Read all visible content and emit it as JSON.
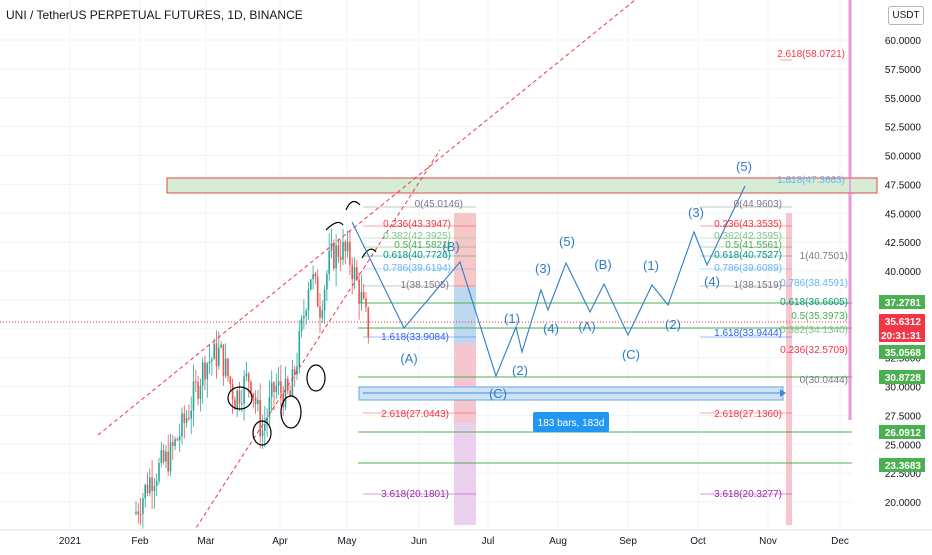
{
  "title": "UNI / TetherUS PERPETUAL FUTURES, 1D, BINANCE",
  "currency_button": "USDT",
  "price_axis": {
    "ticks": [
      "60.0000",
      "57.5000",
      "55.0000",
      "52.5000",
      "50.0000",
      "47.5000",
      "45.0000",
      "42.5000",
      "40.0000",
      "37.5000",
      "35.0000",
      "32.5000",
      "30.0000",
      "27.5000",
      "25.0000",
      "22.5000",
      "20.0000"
    ],
    "top_partial": "6",
    "badges": [
      {
        "text": "37.2781",
        "color": "#4caf50"
      },
      {
        "text": "35.6312",
        "color": "#f23645"
      },
      {
        "text": "20:31:31",
        "color": "#f23645"
      },
      {
        "text": "35.0568",
        "color": "#4caf50"
      },
      {
        "text": "30.8728",
        "color": "#4caf50"
      },
      {
        "text": "26.0912",
        "color": "#4caf50"
      },
      {
        "text": "23.3683",
        "color": "#4caf50"
      }
    ]
  },
  "time_axis": {
    "labels": [
      "2021",
      "Feb",
      "Mar",
      "Apr",
      "May",
      "Jun",
      "Jul",
      "Aug",
      "Sep",
      "Oct",
      "Nov",
      "Dec"
    ]
  },
  "fib_left": [
    {
      "text": "0(45.0146)",
      "color": "#787b86"
    },
    {
      "text": "0.236(43.3947)",
      "color": "#f23645"
    },
    {
      "text": "0.382(42.3925)",
      "color": "#81c784"
    },
    {
      "text": "0.5(41.5821)",
      "color": "#4caf50"
    },
    {
      "text": "0.618(40.7726)",
      "color": "#089981"
    },
    {
      "text": "0.786(39.6194)",
      "color": "#64b5f6"
    },
    {
      "text": "1(38.1505)",
      "color": "#787b86"
    },
    {
      "text": "1.618(33.9084)",
      "color": "#2962ff"
    },
    {
      "text": "2.618(27.0443)",
      "color": "#f23645"
    },
    {
      "text": "3.618(20.1801)",
      "color": "#9c27b0"
    }
  ],
  "fib_right": [
    {
      "text": "2.618(58.0721)",
      "color": "#f23645"
    },
    {
      "text": "1.618(47.3663)",
      "color": "#64b5f6"
    },
    {
      "text": "0(44.9603)",
      "color": "#787b86"
    },
    {
      "text": "0.236(43.3535)",
      "color": "#f23645"
    },
    {
      "text": "0.382(42.3595)",
      "color": "#81c784"
    },
    {
      "text": "0.5(41.5561)",
      "color": "#4caf50"
    },
    {
      "text": "0.618(40.7527)",
      "color": "#089981"
    },
    {
      "text": "0.786(39.6089)",
      "color": "#64b5f6"
    },
    {
      "text": "1(38.1519)",
      "color": "#787b86"
    },
    {
      "text": "1.618(33.9444)",
      "color": "#2962ff"
    },
    {
      "text": "2.618(27.1360)",
      "color": "#f23645"
    },
    {
      "text": "3.618(20.3277)",
      "color": "#9c27b0"
    }
  ],
  "fib_far": [
    {
      "text": "1(40.7501)",
      "color": "#787b86"
    },
    {
      "text": "0.786(38.4591)",
      "color": "#64b5f6"
    },
    {
      "text": "0.618(36.6605)",
      "color": "#089981"
    },
    {
      "text": "0.5(35.3973)",
      "color": "#4caf50"
    },
    {
      "text": "0.382(34.1340)",
      "color": "#81c784"
    },
    {
      "text": "0.236(32.5709)",
      "color": "#f23645"
    },
    {
      "text": "0(30.0444)",
      "color": "#787b86"
    }
  ],
  "wave_labels": [
    "(A)",
    "(B)",
    "(C)",
    "(1)",
    "(2)",
    "(3)",
    "(4)",
    "(5)",
    "(A)",
    "(B)",
    "(C)",
    "(1)",
    "(2)",
    "(3)",
    "(4)",
    "(5)"
  ],
  "range_label": "183 bars, 183d",
  "colors": {
    "up": "#26a69a",
    "down": "#ef5350",
    "wave": "#2f7dc4",
    "axis_text": "#131722",
    "grid": "#f0f3fa"
  }
}
